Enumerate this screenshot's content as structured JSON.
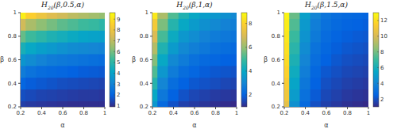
{
  "chart_data": [
    {
      "type": "heatmap",
      "title": "H20(β,0.5,α)",
      "x_label": "α",
      "y_label": "β",
      "x": [
        0.2,
        0.3,
        0.4,
        0.5,
        0.6,
        0.7,
        0.8,
        0.9,
        1
      ],
      "y": [
        0.2,
        0.3,
        0.4,
        0.5,
        0.6,
        0.7,
        0.8,
        0.9,
        1
      ],
      "values": [
        [
          1.3,
          1.2,
          1.15,
          1.1,
          1.05,
          1.0,
          1.0,
          1.0,
          1.0
        ],
        [
          1.6,
          1.5,
          1.4,
          1.35,
          1.3,
          1.25,
          1.2,
          1.2,
          1.15
        ],
        [
          2.1,
          1.9,
          1.8,
          1.7,
          1.6,
          1.55,
          1.5,
          1.45,
          1.4
        ],
        [
          2.8,
          2.5,
          2.3,
          2.2,
          2.1,
          2.0,
          1.9,
          1.85,
          1.8
        ],
        [
          3.6,
          3.3,
          3.0,
          2.8,
          2.7,
          2.6,
          2.5,
          2.4,
          2.3
        ],
        [
          4.6,
          4.2,
          3.9,
          3.7,
          3.5,
          3.3,
          3.2,
          3.1,
          3.0
        ],
        [
          5.8,
          5.3,
          5.0,
          4.7,
          4.5,
          4.3,
          4.1,
          4.0,
          3.9
        ],
        [
          7.3,
          6.7,
          6.3,
          6.0,
          5.7,
          5.5,
          5.3,
          5.2,
          5.0
        ],
        [
          9.3,
          8.5,
          8.0,
          7.6,
          7.3,
          7.0,
          6.8,
          6.6,
          6.4
        ]
      ],
      "xlim": [
        0.2,
        1
      ],
      "xticks": [
        0.2,
        0.4,
        0.6,
        0.8,
        1
      ],
      "ylim": [
        0.2,
        1
      ],
      "yticks": [
        0.2,
        0.4,
        0.6,
        0.8,
        1
      ],
      "colorbar_lim": [
        0.9,
        9.6
      ],
      "colorbar_ticks": [
        1,
        2,
        3,
        4,
        5,
        6,
        7,
        8,
        9
      ]
    },
    {
      "type": "heatmap",
      "title": "H20(β,1,α)",
      "x_label": "α",
      "y_label": "β",
      "x": [
        0.2,
        0.3,
        0.4,
        0.5,
        0.6,
        0.7,
        0.8,
        0.9,
        1
      ],
      "y": [
        0.2,
        0.3,
        0.4,
        0.5,
        0.6,
        0.7,
        0.8,
        0.9,
        1
      ],
      "values": [
        [
          3.5,
          2.2,
          1.7,
          1.4,
          1.3,
          1.2,
          1.1,
          1.05,
          1.0
        ],
        [
          4.0,
          2.6,
          2.0,
          1.7,
          1.5,
          1.4,
          1.3,
          1.25,
          1.2
        ],
        [
          4.6,
          3.0,
          2.3,
          2.0,
          1.8,
          1.7,
          1.6,
          1.5,
          1.45
        ],
        [
          5.2,
          3.5,
          2.7,
          2.3,
          2.1,
          1.9,
          1.8,
          1.75,
          1.7
        ],
        [
          5.8,
          4.0,
          3.1,
          2.7,
          2.4,
          2.2,
          2.1,
          2.0,
          1.95
        ],
        [
          6.4,
          4.5,
          3.6,
          3.1,
          2.8,
          2.6,
          2.4,
          2.3,
          2.2
        ],
        [
          7.0,
          5.1,
          4.1,
          3.5,
          3.2,
          2.9,
          2.7,
          2.6,
          2.5
        ],
        [
          7.7,
          5.7,
          4.6,
          4.0,
          3.6,
          3.3,
          3.1,
          2.9,
          2.8
        ],
        [
          8.5,
          6.3,
          5.2,
          4.5,
          4.0,
          3.7,
          3.5,
          3.3,
          3.1
        ]
      ],
      "xlim": [
        0.2,
        1
      ],
      "xticks": [
        0.2,
        0.4,
        0.6,
        0.8,
        1
      ],
      "ylim": [
        0.2,
        1
      ],
      "yticks": [
        0.2,
        0.4,
        0.6,
        0.8,
        1
      ],
      "colorbar_lim": [
        1,
        8.9
      ],
      "colorbar_ticks": [
        2,
        4,
        6,
        8
      ]
    },
    {
      "type": "heatmap",
      "title": "H20(β,1.5,α)",
      "x_label": "α",
      "y_label": "β",
      "x": [
        0.2,
        0.3,
        0.4,
        0.5,
        0.6,
        0.7,
        0.8,
        0.9,
        1
      ],
      "y": [
        0.2,
        0.3,
        0.4,
        0.5,
        0.6,
        0.7,
        0.8,
        0.9,
        1
      ],
      "values": [
        [
          10.5,
          4.5,
          2.8,
          2.0,
          1.6,
          1.4,
          1.2,
          1.1,
          1.0
        ],
        [
          11.0,
          5.0,
          3.1,
          2.3,
          1.8,
          1.6,
          1.4,
          1.3,
          1.2
        ],
        [
          11.3,
          5.4,
          3.4,
          2.5,
          2.0,
          1.8,
          1.6,
          1.5,
          1.4
        ],
        [
          11.6,
          5.8,
          3.7,
          2.7,
          2.2,
          2.0,
          1.8,
          1.7,
          1.6
        ],
        [
          11.9,
          6.2,
          4.0,
          3.0,
          2.5,
          2.2,
          2.0,
          1.9,
          1.8
        ],
        [
          12.1,
          6.6,
          4.3,
          3.2,
          2.7,
          2.4,
          2.2,
          2.1,
          2.0
        ],
        [
          12.3,
          7.0,
          4.6,
          3.5,
          2.9,
          2.6,
          2.4,
          2.3,
          2.2
        ],
        [
          12.5,
          7.4,
          4.9,
          3.7,
          3.1,
          2.8,
          2.6,
          2.5,
          2.4
        ],
        [
          12.7,
          7.8,
          5.2,
          4.0,
          3.3,
          3.0,
          2.8,
          2.7,
          2.6
        ]
      ],
      "xlim": [
        0.2,
        1
      ],
      "xticks": [
        0.2,
        0.4,
        0.6,
        0.8,
        1
      ],
      "ylim": [
        0.2,
        1
      ],
      "yticks": [
        0.2,
        0.4,
        0.6,
        0.8,
        1
      ],
      "colorbar_lim": [
        1,
        13
      ],
      "colorbar_ticks": [
        2,
        4,
        6,
        8,
        10,
        12
      ]
    }
  ]
}
